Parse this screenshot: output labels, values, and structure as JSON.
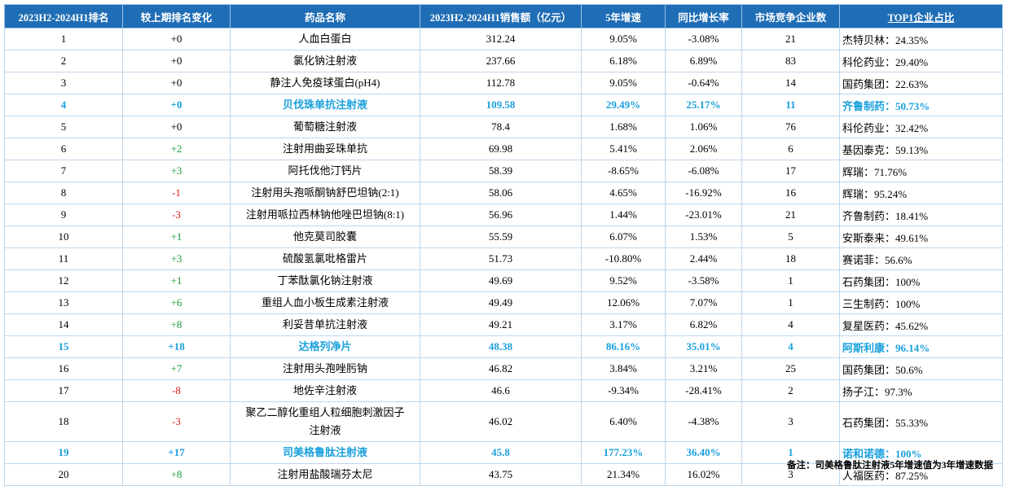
{
  "table": {
    "header": [
      "2023H2-2024H1排名",
      "较上期排名变化",
      "药品名称",
      "2023H2-2024H1销售额（亿元）",
      "5年增速",
      "同比增长率",
      "市场竞争企业数",
      "TOP1企业占比"
    ],
    "rows": [
      [
        "1",
        "+0",
        "人血白蛋白",
        "312.24",
        "9.05%",
        "-3.08%",
        "21",
        "杰特贝林：24.35%"
      ],
      [
        "2",
        "+0",
        "氯化钠注射液",
        "237.66",
        "6.18%",
        "6.89%",
        "83",
        "科伦药业：29.40%"
      ],
      [
        "3",
        "+0",
        "静注人免疫球蛋白(pH4)",
        "112.78",
        "9.05%",
        "-0.64%",
        "14",
        "国药集团：22.63%"
      ],
      [
        "4",
        "+0",
        "贝伐珠单抗注射液",
        "109.58",
        "29.49%",
        "25.17%",
        "11",
        "齐鲁制药：50.73%"
      ],
      [
        "5",
        "+0",
        "葡萄糖注射液",
        "78.4",
        "1.68%",
        "1.06%",
        "76",
        "科伦药业：32.42%"
      ],
      [
        "6",
        "+2",
        "注射用曲妥珠单抗",
        "69.98",
        "5.41%",
        "2.06%",
        "6",
        "基因泰克：59.13%"
      ],
      [
        "7",
        "+3",
        "阿托伐他汀钙片",
        "58.39",
        "-8.65%",
        "-6.08%",
        "17",
        "辉瑞：71.76%"
      ],
      [
        "8",
        "-1",
        "注射用头孢哌酮钠舒巴坦钠(2:1)",
        "58.06",
        "4.65%",
        "-16.92%",
        "16",
        "辉瑞：95.24%"
      ],
      [
        "9",
        "-3",
        "注射用哌拉西林钠他唑巴坦钠(8:1)",
        "56.96",
        "1.44%",
        "-23.01%",
        "21",
        "齐鲁制药：18.41%"
      ],
      [
        "10",
        "+1",
        "他克莫司胶囊",
        "55.59",
        "6.07%",
        "1.53%",
        "5",
        "安斯泰来：49.61%"
      ],
      [
        "11",
        "+3",
        "硫酸氢氯吡格雷片",
        "51.73",
        "-10.80%",
        "2.44%",
        "18",
        "赛诺菲：56.6%"
      ],
      [
        "12",
        "+1",
        "丁苯酞氯化钠注射液",
        "49.69",
        "9.52%",
        "-3.58%",
        "1",
        "石药集团：100%"
      ],
      [
        "13",
        "+6",
        "重组人血小板生成素注射液",
        "49.49",
        "12.06%",
        "7.07%",
        "1",
        "三生制药：100%"
      ],
      [
        "14",
        "+8",
        "利妥昔单抗注射液",
        "49.21",
        "3.17%",
        "6.82%",
        "4",
        "复星医药：45.62%"
      ],
      [
        "15",
        "+18",
        "达格列净片",
        "48.38",
        "86.16%",
        "35.01%",
        "4",
        "阿斯利康：96.14%"
      ],
      [
        "16",
        "+7",
        "注射用头孢唑肟钠",
        "46.82",
        "3.84%",
        "3.21%",
        "25",
        "国药集团：50.6%"
      ],
      [
        "17",
        "-8",
        "地佐辛注射液",
        "46.6",
        "-9.34%",
        "-28.41%",
        "2",
        "扬子江：97.3%"
      ],
      [
        "18",
        "-3",
        "聚乙二醇化重组人粒细胞刺激因子注射液",
        "46.02",
        "6.40%",
        "-4.38%",
        "3",
        "石药集团：55.33%"
      ],
      [
        "19",
        "+17",
        "司美格鲁肽注射液",
        "45.8",
        "177.23%",
        "36.40%",
        "1",
        "诺和诺德：100%"
      ],
      [
        "20",
        "+8",
        "注射用盐酸瑞芬太尼",
        "43.75",
        "21.34%",
        "16.02%",
        "3",
        "人福医药：87.25%"
      ]
    ]
  },
  "note": "备注：司美格鲁肽注射液5年增速值为3年增速数据"
}
